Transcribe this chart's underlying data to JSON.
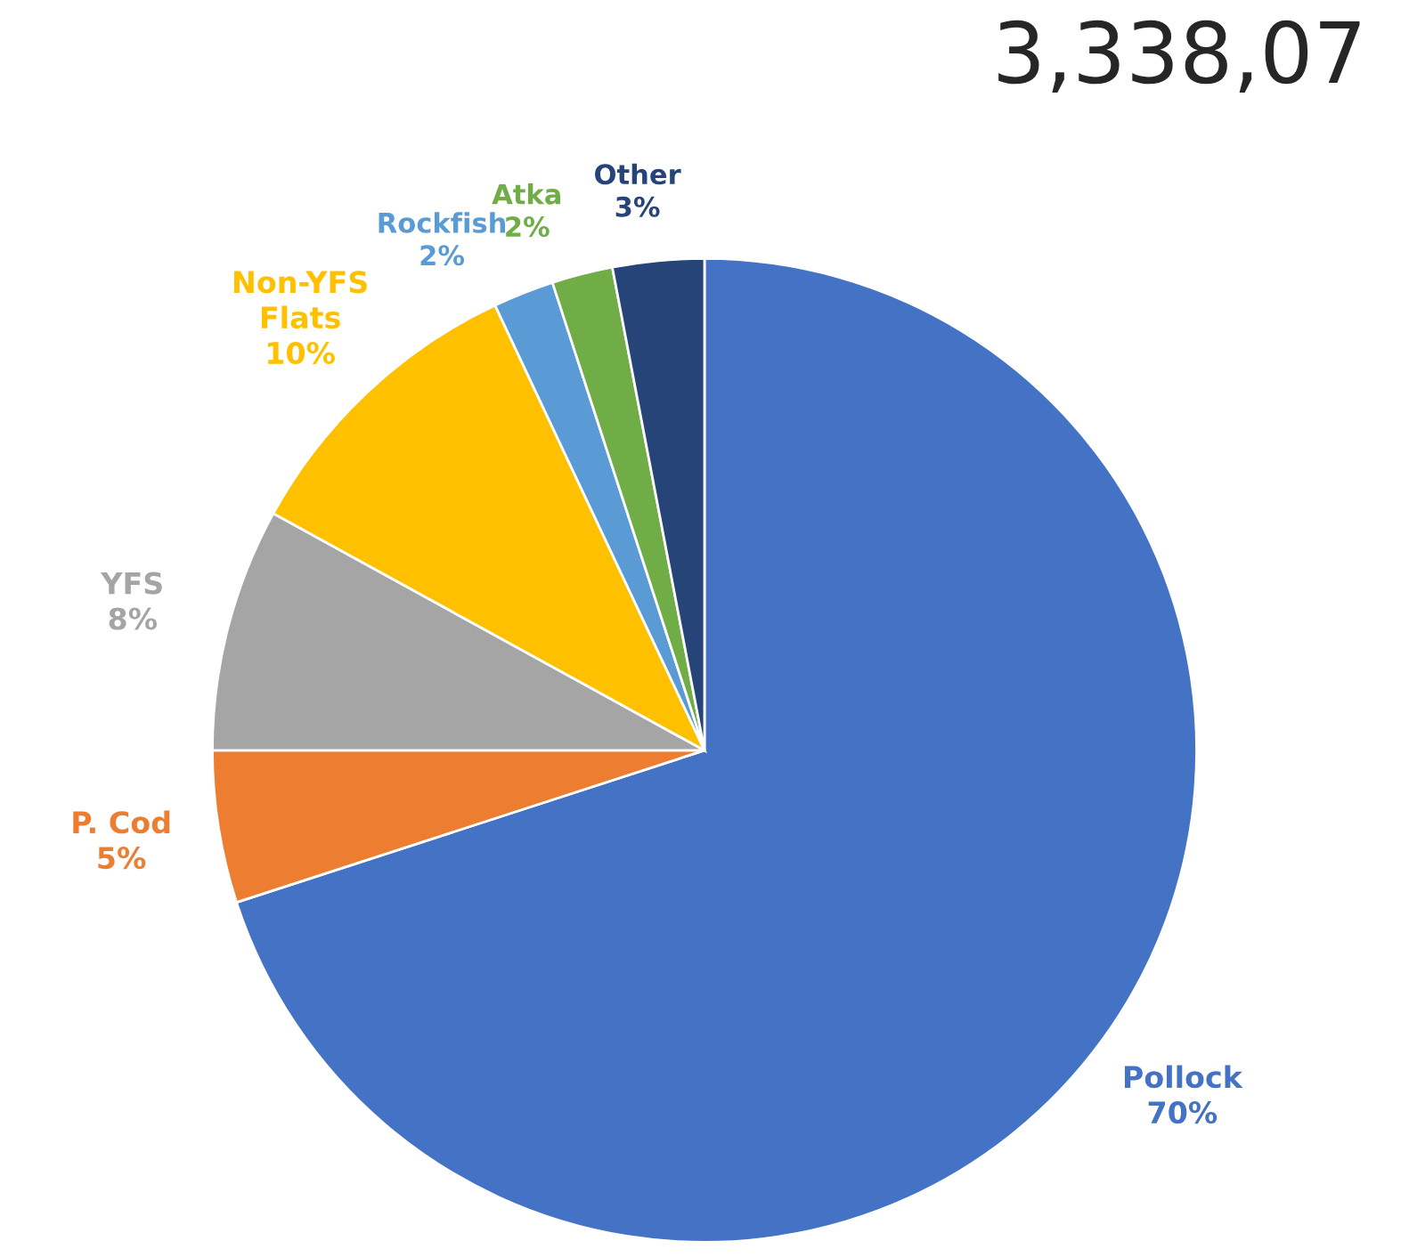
{
  "chart_data": {
    "type": "pie",
    "title": "3,338,07",
    "categories": [
      "Pollock",
      "P. Cod",
      "YFS",
      "Non-YFS\nFlats",
      "Rockfish",
      "Atka",
      "Other"
    ],
    "values": [
      70,
      5,
      8,
      10,
      2,
      2,
      3
    ],
    "value_labels": [
      "70%",
      "5%",
      "8%",
      "10%",
      "2%",
      "2%",
      "3%"
    ],
    "colors": [
      "#4472c4",
      "#ed7d31",
      "#a5a5a5",
      "#ffc000",
      "#5b9bd5",
      "#70ad47",
      "#264478"
    ]
  }
}
